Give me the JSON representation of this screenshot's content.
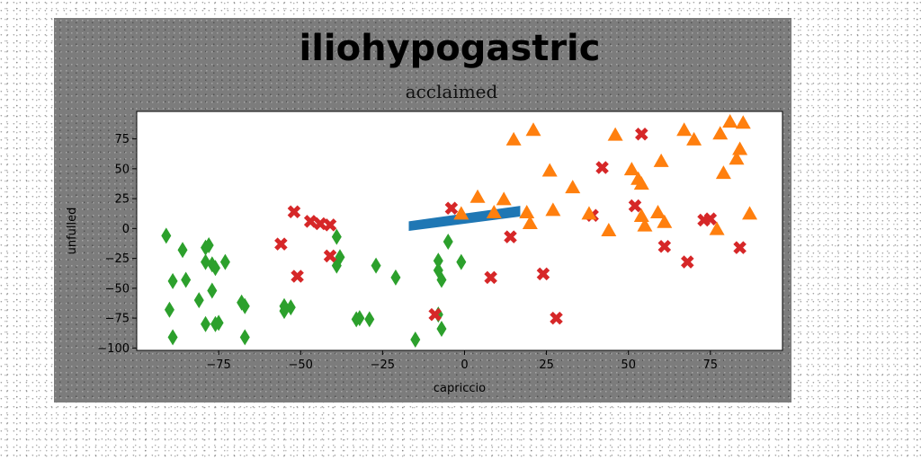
{
  "chart_data": {
    "type": "scatter",
    "title": "iliohypogastric",
    "subtitle": "acclaimed",
    "xlabel": "capriccio",
    "ylabel": "unfulled",
    "xlim": [
      -100,
      97
    ],
    "ylim": [
      -102,
      98
    ],
    "xticks": [
      -75,
      -50,
      -25,
      0,
      25,
      50,
      75
    ],
    "yticks": [
      75,
      50,
      25,
      0,
      -25,
      -50,
      -75,
      -100
    ],
    "grid": false,
    "band": {
      "color": "#1f77b4",
      "x_start": -17,
      "x_end": 17,
      "lower_start": -2,
      "lower_end": 10,
      "upper_start": 6,
      "upper_end": 19
    },
    "series": [
      {
        "marker": "diamond",
        "color": "#2ca02c",
        "points": [
          [
            -91,
            -6
          ],
          [
            -86,
            -18
          ],
          [
            -79,
            -16
          ],
          [
            -78,
            -14
          ],
          [
            -79,
            -28
          ],
          [
            -76,
            -33
          ],
          [
            -73,
            -28
          ],
          [
            -77,
            -30
          ],
          [
            -89,
            -44
          ],
          [
            -85,
            -43
          ],
          [
            -81,
            -60
          ],
          [
            -77,
            -52
          ],
          [
            -68,
            -62
          ],
          [
            -67,
            -65
          ],
          [
            -90,
            -68
          ],
          [
            -79,
            -80
          ],
          [
            -75,
            -79
          ],
          [
            -76,
            -80
          ],
          [
            -89,
            -91
          ],
          [
            -67,
            -91
          ],
          [
            -55,
            -65
          ],
          [
            -53,
            -66
          ],
          [
            -55,
            -69
          ],
          [
            -39,
            -7
          ],
          [
            -38,
            -24
          ],
          [
            -39,
            -31
          ],
          [
            -27,
            -31
          ],
          [
            -21,
            -41
          ],
          [
            -32,
            -75
          ],
          [
            -33,
            -76
          ],
          [
            -29,
            -76
          ],
          [
            -15,
            -93
          ],
          [
            -5,
            -11
          ],
          [
            -1,
            -28
          ],
          [
            -8,
            -27
          ],
          [
            -8,
            -35
          ],
          [
            -7,
            -43
          ],
          [
            -8,
            -72
          ],
          [
            -7,
            -84
          ]
        ]
      },
      {
        "marker": "x",
        "color": "#d62728",
        "points": [
          [
            -52,
            14
          ],
          [
            -47,
            6
          ],
          [
            -44,
            4
          ],
          [
            -41,
            3
          ],
          [
            -56,
            -13
          ],
          [
            -51,
            -40
          ],
          [
            -41,
            -23
          ],
          [
            -4,
            17
          ],
          [
            -9,
            -72
          ],
          [
            8,
            -41
          ],
          [
            14,
            -7
          ],
          [
            24,
            -38
          ],
          [
            28,
            -75
          ],
          [
            39,
            11
          ],
          [
            42,
            51
          ],
          [
            52,
            19
          ],
          [
            54,
            79
          ],
          [
            61,
            -15
          ],
          [
            68,
            -28
          ],
          [
            73,
            7
          ],
          [
            75,
            8
          ],
          [
            84,
            -16
          ]
        ]
      },
      {
        "marker": "triangle",
        "color": "#ff7f0e",
        "points": [
          [
            4,
            26
          ],
          [
            12,
            24
          ],
          [
            9,
            13
          ],
          [
            -1,
            12
          ],
          [
            15,
            74
          ],
          [
            21,
            82
          ],
          [
            19,
            13
          ],
          [
            20,
            4
          ],
          [
            27,
            15
          ],
          [
            26,
            48
          ],
          [
            33,
            34
          ],
          [
            38,
            12
          ],
          [
            44,
            -2
          ],
          [
            46,
            78
          ],
          [
            51,
            49
          ],
          [
            53,
            41
          ],
          [
            54,
            37
          ],
          [
            54,
            10
          ],
          [
            55,
            2
          ],
          [
            59,
            13
          ],
          [
            60,
            56
          ],
          [
            61,
            5
          ],
          [
            67,
            82
          ],
          [
            70,
            74
          ],
          [
            78,
            79
          ],
          [
            79,
            46
          ],
          [
            81,
            89
          ],
          [
            83,
            58
          ],
          [
            85,
            88
          ],
          [
            84,
            66
          ],
          [
            77,
            -1
          ],
          [
            87,
            12
          ]
        ]
      }
    ]
  }
}
